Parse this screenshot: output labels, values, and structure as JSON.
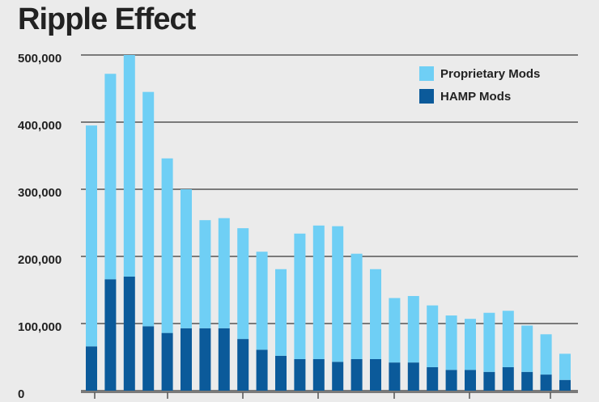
{
  "chart_data": {
    "type": "stacked-bar",
    "title": "Ripple Effect",
    "categories": [
      null,
      null,
      null,
      null,
      null,
      null,
      null,
      null,
      null,
      null,
      null,
      null,
      null,
      null,
      null,
      null,
      null,
      null,
      null,
      null,
      null,
      null,
      null,
      null,
      null,
      null
    ],
    "series": [
      {
        "name": "HAMP Mods",
        "color": "#0b5a9a",
        "values": [
          66000,
          166000,
          170000,
          96000,
          86000,
          93000,
          93000,
          93000,
          77000,
          61000,
          52000,
          47000,
          47000,
          43000,
          47000,
          47000,
          42000,
          42000,
          35000,
          31000,
          31000,
          28000,
          35000,
          28000,
          24000,
          16000
        ]
      },
      {
        "name": "Proprietary Mods",
        "color": "#6fcff5",
        "values": [
          329000,
          306000,
          330000,
          349000,
          260000,
          207000,
          161000,
          164000,
          165000,
          146000,
          129000,
          187000,
          199000,
          202000,
          157000,
          134000,
          96000,
          99000,
          92000,
          81000,
          76000,
          88000,
          84000,
          69000,
          60000,
          39000
        ]
      }
    ],
    "ylim": [
      0,
      500000
    ],
    "yticks": [
      0,
      {
        "value": 100000,
        "label": "100,000"
      },
      {
        "value": 200000,
        "label": "200,000"
      },
      {
        "value": 300000,
        "label": "300,000"
      },
      {
        "value": 400000,
        "label": "400,000"
      },
      {
        "value": 500000,
        "label": "500,000"
      }
    ],
    "grid": true,
    "legend": "top-right"
  }
}
